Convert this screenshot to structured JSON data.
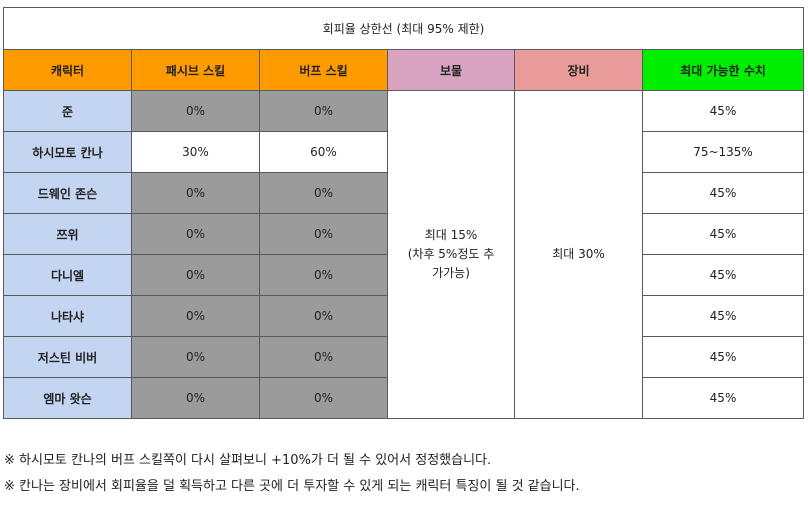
{
  "title": "회피율 상한선 (최대 95% 제한)",
  "headers": {
    "character": "캐릭터",
    "passive": "패시브 스킬",
    "buff": "버프 스킬",
    "treasure": "보물",
    "equipment": "장비",
    "max": "최대 가능한 수치"
  },
  "rows": [
    {
      "name": "준",
      "passive": "0%",
      "buff": "0%",
      "max": "45%"
    },
    {
      "name": "하시모토 칸나",
      "passive": "30%",
      "buff": "60%",
      "max": "75~135%"
    },
    {
      "name": "드웨인 존슨",
      "passive": "0%",
      "buff": "0%",
      "max": "45%"
    },
    {
      "name": "쯔위",
      "passive": "0%",
      "buff": "0%",
      "max": "45%"
    },
    {
      "name": "다니엘",
      "passive": "0%",
      "buff": "0%",
      "max": "45%"
    },
    {
      "name": "나타샤",
      "passive": "0%",
      "buff": "0%",
      "max": "45%"
    },
    {
      "name": "저스틴 비버",
      "passive": "0%",
      "buff": "0%",
      "max": "45%"
    },
    {
      "name": "엠마 왓슨",
      "passive": "0%",
      "buff": "0%",
      "max": "45%"
    }
  ],
  "treasure_value": {
    "line1": "최대 15%",
    "line2": "(차후 5%정도 추",
    "line3": "가가능)"
  },
  "equipment_value": "최대 30%",
  "notes": [
    "※ 하시모토 칸나의 버프 스킬쪽이 다시 살펴보니 +10%가 더 될 수 있어서 정정했습니다.",
    "※ 칸나는 장비에서 회피율을 덜 획득하고 다른 곳에 더 투자할 수 있게 되는 캐릭터 특징이 될 것 같습니다."
  ]
}
